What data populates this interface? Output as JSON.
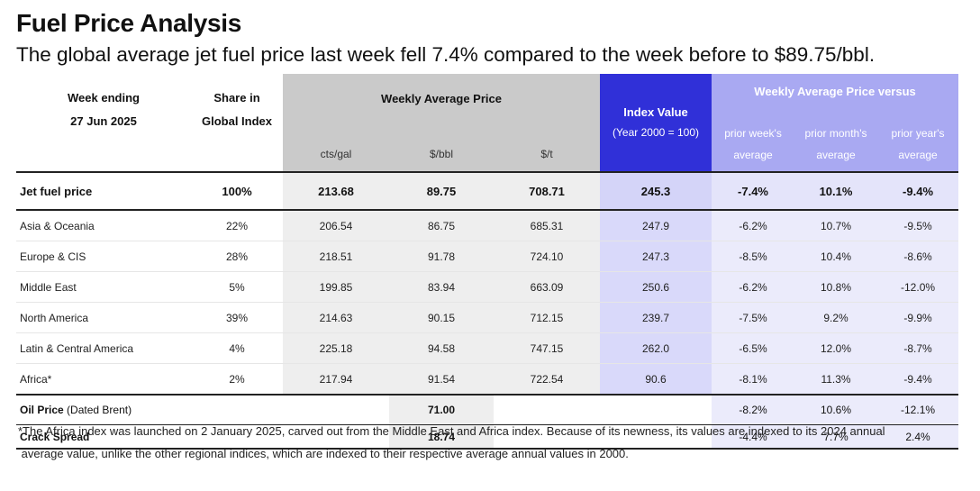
{
  "title": "Fuel Price Analysis",
  "subtitle": "The global average jet fuel price last week fell 7.4% compared to the week before to $89.75/bbl.",
  "header": {
    "week_label": "Week ending",
    "week_date": "27 Jun 2025",
    "share_label_1": "Share in",
    "share_label_2": "Global Index",
    "wap": "Weekly Average Price",
    "cts_gal": "cts/gal",
    "usd_bbl": "$/bbl",
    "usd_t": "$/t",
    "index_value": "Index Value",
    "index_base": "(Year 2000 = 100)",
    "versus": "Weekly Average Price versus",
    "prior_week_1": "prior week's",
    "prior_month_1": "prior month's",
    "prior_year_1": "prior year's",
    "average": "average"
  },
  "jet": {
    "name": "Jet fuel price",
    "share": "100%",
    "cts_gal": "213.68",
    "usd_bbl": "89.75",
    "usd_t": "708.71",
    "index": "245.3",
    "prior_week": "-7.4%",
    "prior_month": "10.1%",
    "prior_year": "-9.4%"
  },
  "regions": [
    {
      "name": "Asia & Oceania",
      "share": "22%",
      "cts_gal": "206.54",
      "usd_bbl": "86.75",
      "usd_t": "685.31",
      "index": "247.9",
      "prior_week": "-6.2%",
      "prior_month": "10.7%",
      "prior_year": "-9.5%"
    },
    {
      "name": "Europe & CIS",
      "share": "28%",
      "cts_gal": "218.51",
      "usd_bbl": "91.78",
      "usd_t": "724.10",
      "index": "247.3",
      "prior_week": "-8.5%",
      "prior_month": "10.4%",
      "prior_year": "-8.6%"
    },
    {
      "name": "Middle East",
      "share": "5%",
      "cts_gal": "199.85",
      "usd_bbl": "83.94",
      "usd_t": "663.09",
      "index": "250.6",
      "prior_week": "-6.2%",
      "prior_month": "10.8%",
      "prior_year": "-12.0%"
    },
    {
      "name": "North America",
      "share": "39%",
      "cts_gal": "214.63",
      "usd_bbl": "90.15",
      "usd_t": "712.15",
      "index": "239.7",
      "prior_week": "-7.5%",
      "prior_month": "9.2%",
      "prior_year": "-9.9%"
    },
    {
      "name": "Latin & Central America",
      "share": "4%",
      "cts_gal": "225.18",
      "usd_bbl": "94.58",
      "usd_t": "747.15",
      "index": "262.0",
      "prior_week": "-6.5%",
      "prior_month": "12.0%",
      "prior_year": "-8.7%"
    },
    {
      "name": "Africa*",
      "share": "2%",
      "cts_gal": "217.94",
      "usd_bbl": "91.54",
      "usd_t": "722.54",
      "index": "90.6",
      "prior_week": "-8.1%",
      "prior_month": "11.3%",
      "prior_year": "-9.4%"
    }
  ],
  "oil": {
    "name_bold": "Oil Price",
    "name_rest": " (Dated Brent)",
    "usd_bbl": "71.00",
    "prior_week": "-8.2%",
    "prior_month": "10.6%",
    "prior_year": "-12.1%"
  },
  "crack": {
    "name": "Crack Spread",
    "usd_bbl": "18.74",
    "prior_week": "-4.4%",
    "prior_month": "7.7%",
    "prior_year": "2.4%"
  },
  "footnote_1": "*The Africa index was launched on 2 January 2025, carved out from the Middle East and Africa index. Because of its newness, its values are indexed  to its 2024 annual",
  "footnote_2": " average value, unlike the other regional indices, which are indexed to their respective average annual values in 2000.",
  "colors": {
    "index_header": "#3030d8",
    "versus_header": "#a9a9f2",
    "price_header": "#cacaca"
  }
}
